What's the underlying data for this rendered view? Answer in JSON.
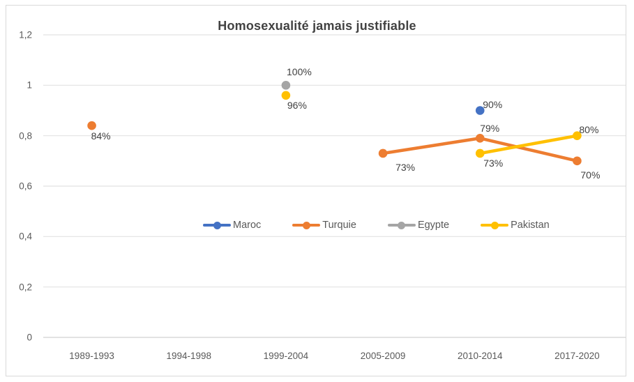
{
  "chart_data": {
    "type": "line",
    "title": "Homosexualité jamais justifiable",
    "categories": [
      "1989-1993",
      "1994-1998",
      "1999-2004",
      "2005-2009",
      "2010-2014",
      "2017-2020"
    ],
    "xlabel": "",
    "ylabel": "",
    "ylim": [
      0,
      1.2
    ],
    "grid": true,
    "legend_position": "center-middle",
    "y_axis": {
      "ticks": [
        {
          "label": "1,2",
          "value": 1.2
        },
        {
          "label": "1",
          "value": 1.0
        },
        {
          "label": "0,8",
          "value": 0.8
        },
        {
          "label": "0,6",
          "value": 0.6
        },
        {
          "label": "0,4",
          "value": 0.4
        },
        {
          "label": "0,2",
          "value": 0.2
        },
        {
          "label": "0",
          "value": 0.0
        }
      ]
    },
    "series": [
      {
        "name": "Maroc",
        "color": "#4472C4",
        "segments": [
          [
            {
              "x": 4,
              "value": 0.9,
              "label": "90%",
              "label_offset": [
                18,
                -9
              ]
            }
          ]
        ]
      },
      {
        "name": "Turquie",
        "color": "#ED7D31",
        "segments": [
          [
            {
              "x": 0,
              "value": 0.84,
              "label": "84%",
              "label_offset": [
                13,
                15
              ]
            }
          ],
          [
            {
              "x": 3,
              "value": 0.73,
              "label": "73%",
              "label_offset": [
                32,
                20
              ]
            },
            {
              "x": 4,
              "value": 0.79,
              "label": "79%",
              "label_offset": [
                14,
                -14
              ]
            },
            {
              "x": 5,
              "value": 0.7,
              "label": "70%",
              "label_offset": [
                19,
                20
              ]
            }
          ]
        ]
      },
      {
        "name": "Egypte",
        "color": "#A5A5A5",
        "segments": [
          [
            {
              "x": 2,
              "value": 1.0,
              "label": "100%",
              "label_offset": [
                19,
                -19
              ]
            }
          ]
        ]
      },
      {
        "name": "Pakistan",
        "color": "#FFC000",
        "segments": [
          [
            {
              "x": 2,
              "value": 0.96,
              "label": "96%",
              "label_offset": [
                16,
                14
              ]
            }
          ],
          [
            {
              "x": 4,
              "value": 0.73,
              "label": "73%",
              "label_offset": [
                19,
                14
              ]
            },
            {
              "x": 5,
              "value": 0.8,
              "label": "80%",
              "label_offset": [
                17,
                -9
              ]
            }
          ]
        ]
      }
    ],
    "colors": {
      "grid": "#e2e2e2",
      "axis": "#d9d9d9",
      "border": "#d9d9d9",
      "tick_text": "#595959",
      "label_text": "#404040",
      "title_text": "#424242",
      "background": "#ffffff"
    }
  }
}
